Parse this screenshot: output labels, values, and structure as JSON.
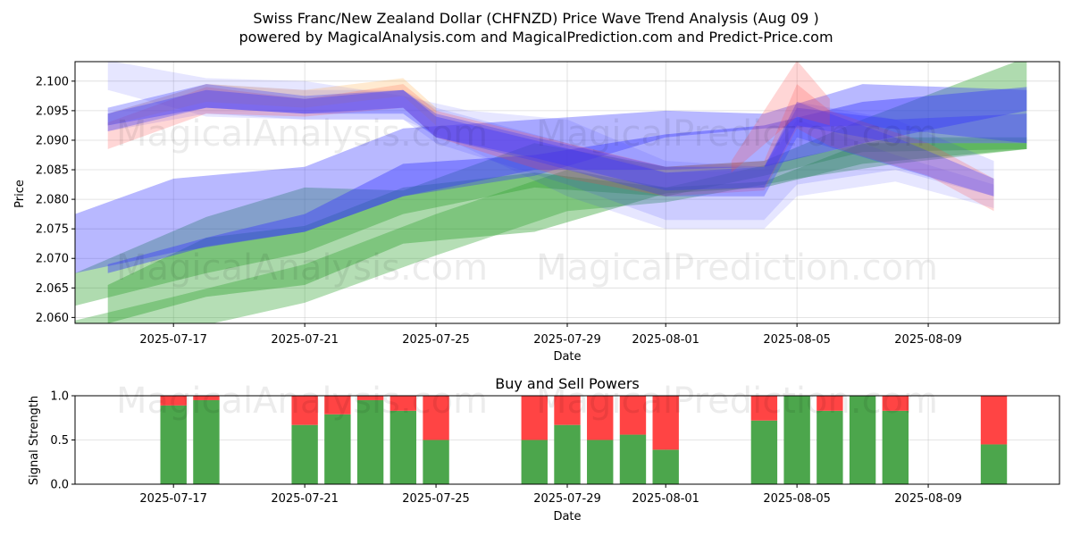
{
  "title_line1": "Swiss Franc/New Zealand Dollar (CHFNZD) Price Wave Trend Analysis (Aug 09 )",
  "title_line2": "powered by MagicalAnalysis.com and MagicalPrediction.com and Predict-Price.com",
  "watermarks": [
    "MagicalAnalysis.com",
    "MagicalPrediction.com"
  ],
  "chart_data": [
    {
      "type": "area",
      "xlabel": "Date",
      "ylabel": "Price",
      "xlim": [
        "2025-07-14",
        "2025-08-13"
      ],
      "ylim": [
        2.059,
        2.1033
      ],
      "x_ticks": [
        "2025-07-17",
        "2025-07-21",
        "2025-07-25",
        "2025-07-29",
        "2025-08-01",
        "2025-08-05",
        "2025-08-09"
      ],
      "y_ticks": [
        "2.060",
        "2.065",
        "2.070",
        "2.075",
        "2.080",
        "2.085",
        "2.090",
        "2.095",
        "2.100"
      ],
      "grid": true,
      "colors": {
        "green": "#2ca02c",
        "blue": "#3333ff",
        "red": "#ff4444",
        "orange": "#ffaa44"
      },
      "bands": [
        {
          "color": "green",
          "opacity": 0.38,
          "x": [
            "2025-07-14",
            "2025-07-18",
            "2025-07-21",
            "2025-07-24",
            "2025-07-28",
            "2025-08-01",
            "2025-08-04",
            "2025-08-07",
            "2025-08-12"
          ],
          "upper": [
            2.0675,
            2.077,
            2.082,
            2.0815,
            2.0895,
            2.0855,
            2.0865,
            2.0935,
            2.104
          ],
          "lower": [
            2.062,
            2.0675,
            2.071,
            2.0775,
            2.082,
            2.0805,
            2.084,
            2.088,
            2.0885
          ]
        },
        {
          "color": "green",
          "opacity": 0.4,
          "x": [
            "2025-07-15",
            "2025-07-18",
            "2025-07-21",
            "2025-07-24",
            "2025-07-28",
            "2025-08-01",
            "2025-08-04",
            "2025-08-07",
            "2025-08-12"
          ],
          "upper": [
            2.0655,
            2.0735,
            2.0755,
            2.082,
            2.0845,
            2.082,
            2.083,
            2.0895,
            2.0895
          ],
          "lower": [
            2.059,
            2.0635,
            2.0655,
            2.0725,
            2.0745,
            2.081,
            2.082,
            2.086,
            2.0885
          ]
        },
        {
          "color": "green",
          "opacity": 0.35,
          "x": [
            "2025-07-14",
            "2025-07-17",
            "2025-07-21",
            "2025-07-25",
            "2025-07-29",
            "2025-08-01",
            "2025-08-05",
            "2025-08-08",
            "2025-08-12"
          ],
          "upper": [
            2.0595,
            2.0635,
            2.069,
            2.0775,
            2.085,
            2.082,
            2.087,
            2.0905,
            2.0905
          ],
          "lower": [
            2.0545,
            2.0575,
            2.0625,
            2.0705,
            2.078,
            2.0795,
            2.0835,
            2.086,
            2.0885
          ]
        },
        {
          "color": "blue",
          "opacity": 0.35,
          "x": [
            "2025-07-14",
            "2025-07-17",
            "2025-07-21",
            "2025-07-24",
            "2025-07-28",
            "2025-08-01",
            "2025-08-04",
            "2025-08-07",
            "2025-08-12"
          ],
          "upper": [
            2.0775,
            2.0835,
            2.0855,
            2.092,
            2.0935,
            2.095,
            2.0945,
            2.0995,
            2.0985
          ],
          "lower": [
            2.0675,
            2.071,
            2.0745,
            2.0805,
            2.084,
            2.0905,
            2.092,
            2.0925,
            2.0895
          ]
        },
        {
          "color": "blue",
          "opacity": 0.4,
          "x": [
            "2025-07-15",
            "2025-07-18",
            "2025-07-21",
            "2025-07-24",
            "2025-07-28",
            "2025-08-01",
            "2025-08-04",
            "2025-08-07",
            "2025-08-12"
          ],
          "upper": [
            2.069,
            2.0735,
            2.0775,
            2.086,
            2.0875,
            2.091,
            2.0925,
            2.0965,
            2.099
          ],
          "lower": [
            2.0675,
            2.072,
            2.0745,
            2.0805,
            2.085,
            2.085,
            2.0855,
            2.0895,
            2.095
          ]
        },
        {
          "color": "blue",
          "opacity": 0.12,
          "x": [
            "2025-07-15",
            "2025-07-18",
            "2025-07-21",
            "2025-07-24",
            "2025-07-26",
            "2025-07-29",
            "2025-08-01",
            "2025-08-04",
            "2025-08-05",
            "2025-08-08",
            "2025-08-11"
          ],
          "upper": [
            2.1035,
            2.1005,
            2.1,
            2.0975,
            2.095,
            2.0935,
            2.0865,
            2.0855,
            2.0935,
            2.0875,
            2.0825
          ],
          "lower": [
            2.0985,
            2.094,
            2.0935,
            2.0935,
            2.0885,
            2.0805,
            2.075,
            2.075,
            2.0805,
            2.083,
            2.0785
          ]
        },
        {
          "color": "blue",
          "opacity": 0.14,
          "x": [
            "2025-07-15",
            "2025-07-18",
            "2025-07-21",
            "2025-07-24",
            "2025-07-25",
            "2025-07-29",
            "2025-08-01",
            "2025-08-04",
            "2025-08-05",
            "2025-08-08",
            "2025-08-11"
          ],
          "upper": [
            2.0945,
            2.0995,
            2.0985,
            2.0985,
            2.0955,
            2.0895,
            2.0845,
            2.085,
            2.0965,
            2.0935,
            2.0865
          ],
          "lower": [
            2.0915,
            2.0945,
            2.0935,
            2.0935,
            2.0895,
            2.0825,
            2.0765,
            2.0765,
            2.0825,
            2.085,
            2.0805
          ]
        },
        {
          "color": "red",
          "opacity": 0.22,
          "x": [
            "2025-07-15",
            "2025-07-18",
            "2025-07-21",
            "2025-07-24",
            "2025-07-25",
            "2025-07-29",
            "2025-08-01",
            "2025-08-04",
            "2025-08-05",
            "2025-08-06",
            "2025-08-09",
            "2025-08-11"
          ],
          "upper": [
            2.093,
            2.099,
            2.097,
            2.0995,
            2.095,
            2.0895,
            2.0855,
            2.0865,
            2.0995,
            2.095,
            2.0895,
            2.0835
          ],
          "lower": [
            2.0885,
            2.0945,
            2.094,
            2.0955,
            2.0905,
            2.0835,
            2.0805,
            2.0815,
            2.092,
            2.089,
            2.084,
            2.078
          ]
        },
        {
          "color": "orange",
          "opacity": 0.25,
          "x": [
            "2025-07-15",
            "2025-07-18",
            "2025-07-21",
            "2025-07-24",
            "2025-07-25"
          ],
          "upper": [
            2.0945,
            2.0995,
            2.0985,
            2.1005,
            2.0955
          ],
          "lower": [
            2.0925,
            2.0965,
            2.0955,
            2.0975,
            2.0925
          ]
        },
        {
          "color": "blue",
          "opacity": 0.3,
          "x": [
            "2025-07-15",
            "2025-07-18",
            "2025-07-21",
            "2025-07-24",
            "2025-07-25",
            "2025-07-28",
            "2025-08-01",
            "2025-08-04",
            "2025-08-05",
            "2025-08-08",
            "2025-08-11"
          ],
          "upper": [
            2.0955,
            2.0995,
            2.0975,
            2.0985,
            2.0945,
            2.0905,
            2.0855,
            2.0855,
            2.0965,
            2.0905,
            2.0835
          ],
          "lower": [
            2.0915,
            2.0955,
            2.0945,
            2.0945,
            2.0905,
            2.0865,
            2.0805,
            2.0805,
            2.0905,
            2.0855,
            2.0805
          ]
        },
        {
          "color": "blue",
          "opacity": 0.35,
          "x": [
            "2025-07-15",
            "2025-07-18",
            "2025-07-21",
            "2025-07-24",
            "2025-07-25",
            "2025-07-28",
            "2025-08-01",
            "2025-08-04",
            "2025-08-05",
            "2025-08-08",
            "2025-08-12"
          ],
          "upper": [
            2.0945,
            2.0985,
            2.097,
            2.0985,
            2.094,
            2.09,
            2.0845,
            2.0855,
            2.0955,
            2.0935,
            2.0945
          ],
          "lower": [
            2.0925,
            2.0955,
            2.0945,
            2.0955,
            2.0905,
            2.087,
            2.0815,
            2.082,
            2.0925,
            2.0895,
            2.0895
          ]
        },
        {
          "color": "red",
          "opacity": 0.22,
          "x": [
            "2025-08-03",
            "2025-08-05",
            "2025-08-06"
          ],
          "upper": [
            2.0865,
            2.1035,
            2.097
          ],
          "lower": [
            2.0845,
            2.094,
            2.0925
          ]
        }
      ]
    },
    {
      "type": "bar",
      "title": "Buy and Sell Powers",
      "xlabel": "Date",
      "ylabel": "Signal Strength",
      "xlim": [
        "2025-07-14",
        "2025-08-13"
      ],
      "ylim": [
        0.0,
        1.0
      ],
      "x_ticks": [
        "2025-07-17",
        "2025-07-21",
        "2025-07-25",
        "2025-07-29",
        "2025-08-01",
        "2025-08-05",
        "2025-08-09"
      ],
      "y_ticks": [
        "0.0",
        "0.5",
        "1.0"
      ],
      "grid": true,
      "colors": {
        "buy": "#4ca64c",
        "sell": "#ff4444"
      },
      "dates": [
        "2025-07-17",
        "2025-07-18",
        "2025-07-21",
        "2025-07-22",
        "2025-07-23",
        "2025-07-24",
        "2025-07-25",
        "2025-07-28",
        "2025-07-29",
        "2025-07-30",
        "2025-07-31",
        "2025-08-01",
        "2025-08-04",
        "2025-08-05",
        "2025-08-06",
        "2025-08-07",
        "2025-08-08",
        "2025-08-11"
      ],
      "buy": [
        0.89,
        0.95,
        0.67,
        0.79,
        0.95,
        0.83,
        0.5,
        0.5,
        0.67,
        0.5,
        0.56,
        0.39,
        0.72,
        1.0,
        0.83,
        1.0,
        0.83,
        0.45
      ],
      "sell": [
        0.11,
        0.05,
        0.33,
        0.21,
        0.05,
        0.17,
        0.5,
        0.5,
        0.33,
        0.5,
        0.44,
        0.61,
        0.28,
        0.0,
        0.17,
        0.0,
        0.17,
        0.55
      ]
    }
  ]
}
